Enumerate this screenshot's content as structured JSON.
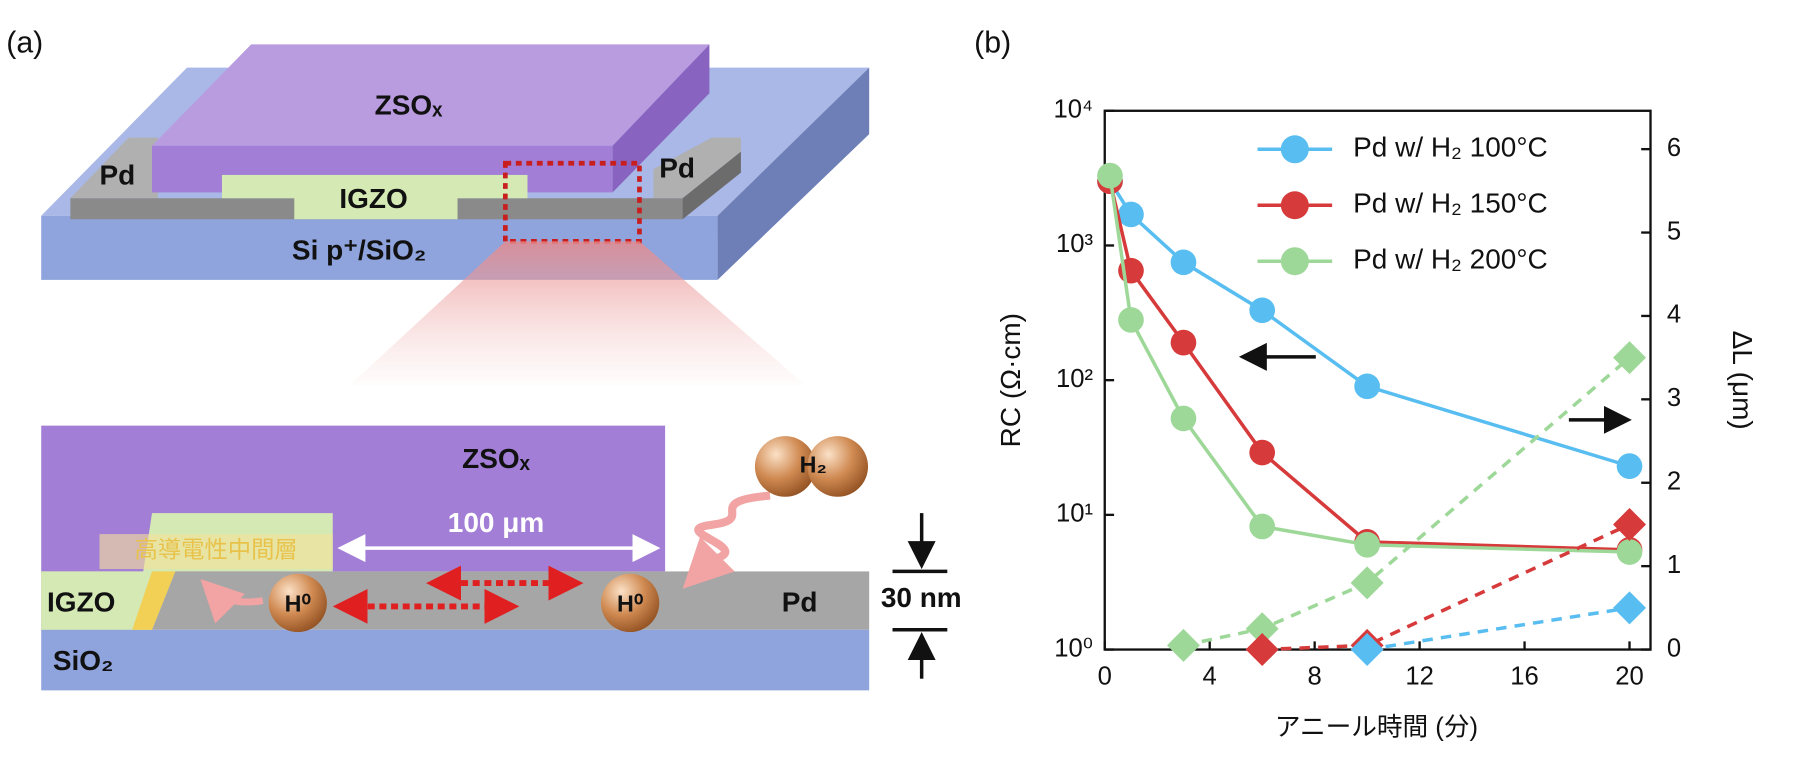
{
  "diagram": {
    "panel_label": "(a)",
    "top": {
      "zso": "ZSOₓ",
      "pd_left": "Pd",
      "pd_right": "Pd",
      "igzo": "IGZO",
      "substrate": "Si p⁺/SiO₂"
    },
    "bottom": {
      "zso": "ZSOₓ",
      "h2": "H₂",
      "interlayer": "高導電性中間層",
      "length": "100 μm",
      "h0_left": "H⁰",
      "h0_right": "H⁰",
      "pd": "Pd",
      "igzo": "IGZO",
      "sio2": "SiO₂",
      "thickness": "30 nm"
    }
  },
  "chart_data": {
    "type": "line",
    "panel_label": "(b)",
    "xlabel": "アニール時間 (分)",
    "ylabel": "RC (Ω·cm)",
    "y2label": "ΔL (μm)",
    "xlim": [
      0,
      20.8
    ],
    "xticks": [
      0,
      4,
      8,
      12,
      16,
      20
    ],
    "ylim": [
      1,
      10000
    ],
    "log_y": true,
    "yticks": [
      {
        "value": 1,
        "label": "10⁰"
      },
      {
        "value": 10,
        "label": "10¹"
      },
      {
        "value": 100,
        "label": "10²"
      },
      {
        "value": 1000,
        "label": "10³"
      },
      {
        "value": 10000,
        "label": "10⁴"
      }
    ],
    "y2lim": [
      0,
      6.46
    ],
    "y2ticks": [
      0,
      1,
      2,
      3,
      4,
      5,
      6
    ],
    "legend": "upper right",
    "series": [
      {
        "name": "Pd w/ H₂ 100°C",
        "color": "#58bdf0",
        "marker": "circle",
        "x": [
          0.2,
          1,
          3,
          6,
          10,
          20
        ],
        "values": [
          3000,
          1700,
          750,
          330,
          90,
          23
        ]
      },
      {
        "name": "Pd w/ H₂ 150°C",
        "color": "#d63a3a",
        "marker": "circle",
        "x": [
          0.2,
          1,
          3,
          6,
          10,
          20
        ],
        "values": [
          3000,
          650,
          190,
          29,
          6.3,
          5.5
        ]
      },
      {
        "name": "Pd w/ H₂ 200°C",
        "color": "#9ed898",
        "marker": "circle",
        "x": [
          0.2,
          1,
          3,
          6,
          10,
          20
        ],
        "values": [
          3300,
          280,
          52,
          8.2,
          6,
          5.3
        ]
      },
      {
        "color": "#9ed898",
        "marker": "diamond",
        "axis": "y2",
        "x": [
          3,
          6,
          10,
          20
        ],
        "values": [
          0.05,
          0.25,
          0.8,
          3.5
        ]
      },
      {
        "color": "#d63a3a",
        "marker": "diamond",
        "axis": "y2",
        "x": [
          6,
          10,
          20
        ],
        "values": [
          0,
          0.05,
          1.5
        ]
      },
      {
        "color": "#58bdf0",
        "marker": "diamond",
        "axis": "y2",
        "x": [
          10,
          20
        ],
        "values": [
          0,
          0.5
        ]
      }
    ]
  }
}
